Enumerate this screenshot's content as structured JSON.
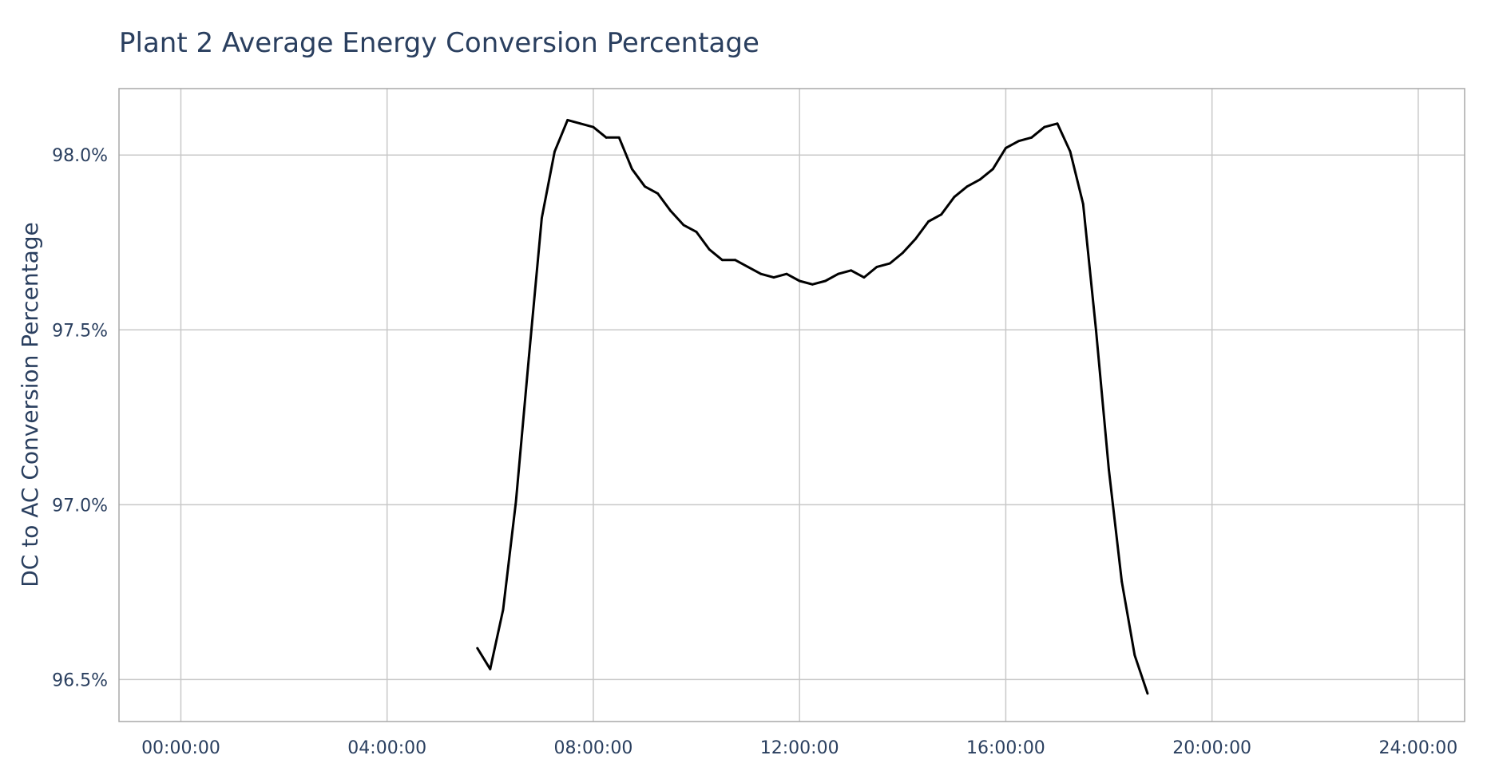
{
  "chart_data": {
    "type": "line",
    "title": "Plant 2 Average Energy Conversion Percentage",
    "xlabel": "",
    "ylabel": "DC to AC Conversion Percentage",
    "x_tick_labels": [
      "00:00:00",
      "04:00:00",
      "08:00:00",
      "12:00:00",
      "16:00:00",
      "20:00:00",
      "24:00:00"
    ],
    "y_tick_labels": [
      "96.5%",
      "97.0%",
      "97.5%",
      "98.0%"
    ],
    "x_range_hours": [
      -1.2,
      24.9
    ],
    "y_range": [
      96.38,
      98.19
    ],
    "y_ticks": [
      96.5,
      97.0,
      97.5,
      98.0
    ],
    "line_color": "#000000",
    "grid": true,
    "series": [
      {
        "x": [
          "05:45:00",
          "06:00:00",
          "06:15:00",
          "06:30:00",
          "06:45:00",
          "07:00:00",
          "07:15:00",
          "07:30:00",
          "07:45:00",
          "08:00:00",
          "08:15:00",
          "08:30:00",
          "08:45:00",
          "09:00:00",
          "09:15:00",
          "09:30:00",
          "09:45:00",
          "10:00:00",
          "10:15:00",
          "10:30:00",
          "10:45:00",
          "11:00:00",
          "11:15:00",
          "11:30:00",
          "11:45:00",
          "12:00:00",
          "12:15:00",
          "12:30:00",
          "12:45:00",
          "13:00:00",
          "13:15:00",
          "13:30:00",
          "13:45:00",
          "14:00:00",
          "14:15:00",
          "14:30:00",
          "14:45:00",
          "15:00:00",
          "15:15:00",
          "15:30:00",
          "15:45:00",
          "16:00:00",
          "16:15:00",
          "16:30:00",
          "16:45:00",
          "17:00:00",
          "17:15:00",
          "17:30:00",
          "17:45:00",
          "18:00:00",
          "18:15:00",
          "18:30:00",
          "18:45:00"
        ],
        "y": [
          96.59,
          96.53,
          96.7,
          97.01,
          97.42,
          97.82,
          98.01,
          98.1,
          98.09,
          98.08,
          98.05,
          98.05,
          97.96,
          97.91,
          97.89,
          97.84,
          97.8,
          97.78,
          97.73,
          97.7,
          97.7,
          97.68,
          97.66,
          97.65,
          97.66,
          97.64,
          97.63,
          97.64,
          97.66,
          97.67,
          97.65,
          97.68,
          97.69,
          97.72,
          97.76,
          97.81,
          97.83,
          97.88,
          97.91,
          97.93,
          97.96,
          98.02,
          98.04,
          98.05,
          98.08,
          98.09,
          98.01,
          97.86,
          97.5,
          97.1,
          96.78,
          96.57,
          96.46
        ]
      }
    ]
  }
}
